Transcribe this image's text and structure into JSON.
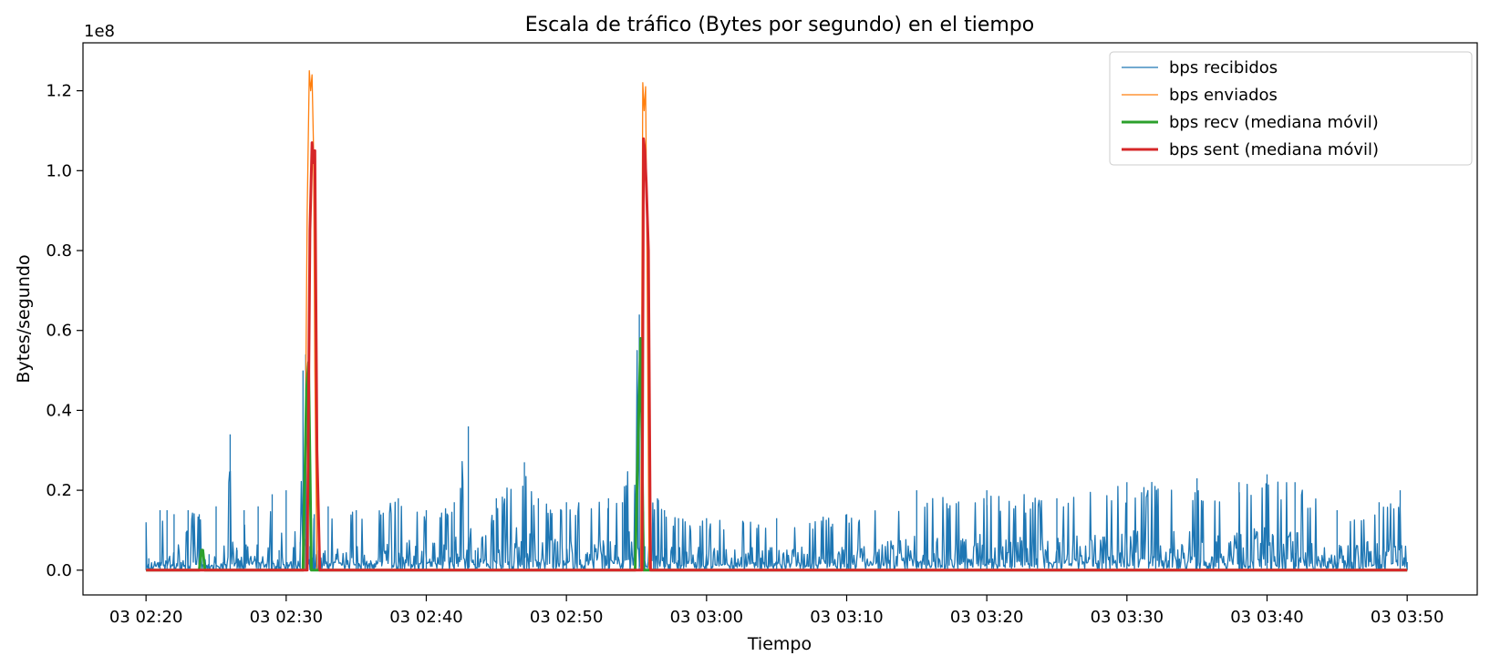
{
  "chart_data": {
    "type": "line",
    "title": "Escala de tráfico (Bytes por segundo) en el tiempo",
    "xlabel": "Tiempo",
    "ylabel": "Bytes/segundo",
    "y_offset_label": "1e8",
    "x_unit": "minutes since 03 02:20",
    "xlim": [
      -4.5,
      95.0
    ],
    "ylim": [
      -0.062,
      1.32
    ],
    "y_scale_note": "values in units of 1e8 bytes/s",
    "grid": false,
    "legend_position": "top-right",
    "x_ticks": [
      {
        "value": 0,
        "label": "03 02:20"
      },
      {
        "value": 10,
        "label": "03 02:30"
      },
      {
        "value": 20,
        "label": "03 02:40"
      },
      {
        "value": 30,
        "label": "03 02:50"
      },
      {
        "value": 40,
        "label": "03 03:00"
      },
      {
        "value": 50,
        "label": "03 03:10"
      },
      {
        "value": 60,
        "label": "03 03:20"
      },
      {
        "value": 70,
        "label": "03 03:30"
      },
      {
        "value": 80,
        "label": "03 03:40"
      },
      {
        "value": 90,
        "label": "03 03:50"
      }
    ],
    "y_ticks": [
      {
        "value": 0.0,
        "label": "0.0"
      },
      {
        "value": 0.2,
        "label": "0.2"
      },
      {
        "value": 0.4,
        "label": "0.4"
      },
      {
        "value": 0.6,
        "label": "0.6"
      },
      {
        "value": 0.8,
        "label": "0.8"
      },
      {
        "value": 1.0,
        "label": "1.0"
      },
      {
        "value": 1.2,
        "label": "1.2"
      }
    ],
    "series": [
      {
        "name": "bps recibidos",
        "color": "#1f77b4",
        "width": 1.3,
        "style": "noisy-spiky",
        "x": [
          0,
          0.2,
          1.0,
          1.5,
          2.0,
          2.5,
          3.0,
          3.8,
          4.5,
          5.0,
          5.5,
          6.0,
          6.5,
          7.0,
          8.0,
          9.0,
          9.5,
          10.0,
          11.0,
          11.2,
          11.4,
          11.7,
          12.0,
          12.3,
          13.0,
          15.0,
          18.0,
          20.0,
          22.0,
          23.0,
          23.5,
          25.0,
          27.0,
          28.0,
          30.0,
          33.0,
          34.0,
          35.2,
          35.4,
          35.6,
          35.9,
          36.5,
          37.0,
          38.0,
          40.0,
          45.0,
          50.0,
          55.0,
          60.0,
          65.0,
          70.0,
          75.0,
          78.0,
          80.0,
          82.0,
          85.0,
          88.0,
          89.5,
          90.0
        ],
        "y": [
          0.12,
          0.03,
          0.15,
          0.15,
          0.14,
          0.02,
          0.15,
          0.14,
          0.04,
          0.16,
          0.02,
          0.34,
          0.05,
          0.15,
          0.16,
          0.19,
          0.05,
          0.2,
          0.07,
          0.5,
          0.54,
          0.06,
          0.14,
          0.05,
          0.16,
          0.15,
          0.18,
          0.15,
          0.17,
          0.36,
          0.05,
          0.18,
          0.27,
          0.18,
          0.17,
          0.18,
          0.17,
          0.64,
          0.66,
          0.06,
          0.17,
          0.18,
          0.15,
          0.13,
          0.13,
          0.13,
          0.14,
          0.2,
          0.2,
          0.18,
          0.22,
          0.23,
          0.22,
          0.24,
          0.22,
          0.15,
          0.17,
          0.2,
          0.02
        ]
      },
      {
        "name": "bps enviados",
        "color": "#ff7f0e",
        "width": 1.3,
        "style": "line",
        "x": [
          0,
          11.3,
          11.5,
          11.65,
          11.75,
          11.85,
          11.95,
          12.05,
          12.2,
          35.0,
          35.3,
          35.45,
          35.55,
          35.65,
          35.75,
          35.9,
          90.0
        ],
        "y": [
          0.0,
          0.0,
          0.9,
          1.25,
          1.2,
          1.24,
          1.06,
          0.5,
          0.0,
          0.0,
          0.0,
          1.22,
          1.15,
          1.21,
          0.8,
          0.0,
          0.0
        ]
      },
      {
        "name": "bps recv (mediana móvil)",
        "color": "#2ca02c",
        "width": 3,
        "style": "line",
        "x": [
          0,
          3.8,
          3.95,
          4.05,
          4.2,
          11.2,
          11.45,
          11.6,
          11.8,
          34.9,
          35.1,
          35.3,
          35.5,
          90.0
        ],
        "y": [
          0.0,
          0.0,
          0.05,
          0.05,
          0.0,
          0.0,
          0.45,
          0.52,
          0.0,
          0.0,
          0.3,
          0.58,
          0.0,
          0.0
        ]
      },
      {
        "name": "bps sent (mediana móvil)",
        "color": "#d62728",
        "width": 3,
        "style": "line",
        "x": [
          0,
          11.5,
          11.7,
          11.85,
          11.95,
          12.05,
          12.2,
          12.4,
          35.2,
          35.4,
          35.5,
          35.6,
          35.7,
          35.85,
          36.0,
          90.0
        ],
        "y": [
          0.0,
          0.0,
          0.85,
          1.07,
          1.02,
          1.05,
          0.3,
          0.0,
          0.0,
          0.0,
          1.08,
          1.05,
          0.97,
          0.8,
          0.0,
          0.0
        ]
      }
    ]
  }
}
